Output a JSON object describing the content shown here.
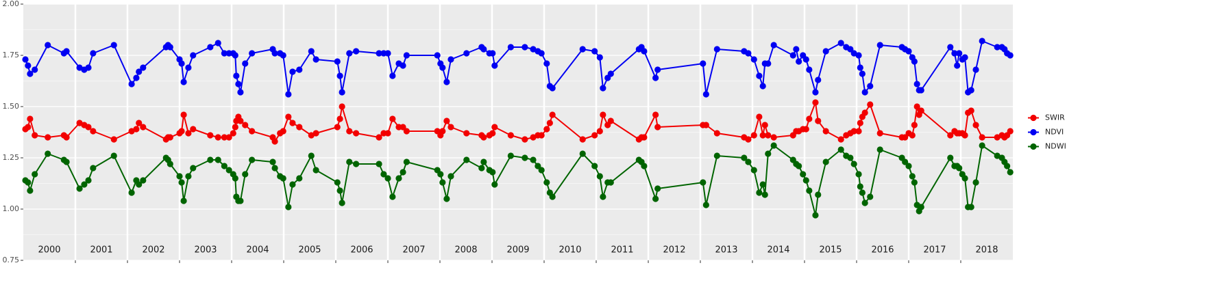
{
  "chart_data": {
    "type": "line",
    "xlim": [
      2000,
      2019
    ],
    "xticks": [
      2001,
      2002,
      2003,
      2004,
      2005,
      2006,
      2007,
      2008,
      2009,
      2010,
      2011,
      2012,
      2013,
      2014,
      2015,
      2016,
      2017,
      2018
    ],
    "year_labels": [
      "2000",
      "2001",
      "2002",
      "2003",
      "2004",
      "2005",
      "2006",
      "2007",
      "2008",
      "2009",
      "2010",
      "2011",
      "2012",
      "2013",
      "2014",
      "2015",
      "2016",
      "2017",
      "2018"
    ],
    "ylim": [
      0.75,
      2.0
    ],
    "yticks": [
      0.75,
      {
        "value": 1.0,
        "label": "1.00"
      },
      1.25,
      {
        "value": 1.5,
        "label": "1.50"
      },
      1.75,
      {
        "value": 2.0,
        "label": "2.00"
      }
    ],
    "grid": true,
    "legend": "right",
    "x": [
      2000.04,
      2000.09,
      2000.13,
      2000.22,
      2000.47,
      2000.78,
      2000.83,
      2001.08,
      2001.17,
      2001.25,
      2001.34,
      2001.74,
      2002.08,
      2002.17,
      2002.22,
      2002.3,
      2002.74,
      2002.78,
      2002.82,
      2003.0,
      2003.04,
      2003.08,
      2003.17,
      2003.26,
      2003.59,
      2003.74,
      2003.86,
      2003.95,
      2004.03,
      2004.07,
      2004.09,
      2004.13,
      2004.17,
      2004.26,
      2004.39,
      2004.79,
      2004.83,
      2004.93,
      2004.99,
      2005.09,
      2005.17,
      2005.3,
      2005.53,
      2005.62,
      2006.03,
      2006.08,
      2006.12,
      2006.26,
      2006.39,
      2006.83,
      2006.92,
      2007.0,
      2007.09,
      2007.21,
      2007.29,
      2007.36,
      2007.95,
      2008.01,
      2008.05,
      2008.13,
      2008.21,
      2008.51,
      2008.8,
      2008.84,
      2008.95,
      2009.01,
      2009.05,
      2009.36,
      2009.63,
      2009.79,
      2009.88,
      2009.95,
      2010.05,
      2010.11,
      2010.16,
      2010.74,
      2010.97,
      2011.07,
      2011.13,
      2011.22,
      2011.28,
      2011.82,
      2011.87,
      2011.92,
      2012.14,
      2012.18,
      2013.05,
      2013.11,
      2013.32,
      2013.84,
      2013.92,
      2014.03,
      2014.13,
      2014.2,
      2014.24,
      2014.3,
      2014.41,
      2014.78,
      2014.84,
      2014.89,
      2014.97,
      2015.03,
      2015.09,
      2015.21,
      2015.26,
      2015.41,
      2015.7,
      2015.8,
      2015.88,
      2015.95,
      2016.04,
      2016.07,
      2016.11,
      2016.16,
      2016.26,
      2016.45,
      2016.87,
      2016.93,
      2017.0,
      2017.07,
      2017.11,
      2017.16,
      2017.2,
      2017.24,
      2017.8,
      2017.88,
      2017.93,
      2017.97,
      2018.03,
      2018.08,
      2018.14,
      2018.2,
      2018.29,
      2018.41,
      2018.7,
      2018.79,
      2018.84,
      2018.89,
      2018.95
    ],
    "series": [
      {
        "name": "SWIR",
        "color": "#f20000",
        "values": [
          1.39,
          1.4,
          1.44,
          1.36,
          1.35,
          1.36,
          1.35,
          1.42,
          1.41,
          1.4,
          1.38,
          1.34,
          1.38,
          1.39,
          1.42,
          1.4,
          1.34,
          1.35,
          1.35,
          1.37,
          1.38,
          1.46,
          1.37,
          1.39,
          1.36,
          1.35,
          1.35,
          1.35,
          1.37,
          1.4,
          1.43,
          1.45,
          1.43,
          1.41,
          1.38,
          1.35,
          1.33,
          1.37,
          1.38,
          1.45,
          1.42,
          1.4,
          1.36,
          1.37,
          1.4,
          1.44,
          1.5,
          1.38,
          1.37,
          1.35,
          1.37,
          1.37,
          1.44,
          1.4,
          1.4,
          1.38,
          1.38,
          1.36,
          1.38,
          1.43,
          1.4,
          1.37,
          1.36,
          1.35,
          1.36,
          1.37,
          1.4,
          1.36,
          1.34,
          1.35,
          1.36,
          1.36,
          1.39,
          1.42,
          1.46,
          1.34,
          1.36,
          1.38,
          1.46,
          1.41,
          1.43,
          1.34,
          1.35,
          1.35,
          1.46,
          1.4,
          1.41,
          1.41,
          1.37,
          1.35,
          1.34,
          1.36,
          1.45,
          1.36,
          1.41,
          1.36,
          1.35,
          1.36,
          1.38,
          1.38,
          1.39,
          1.39,
          1.44,
          1.52,
          1.43,
          1.38,
          1.34,
          1.36,
          1.37,
          1.38,
          1.38,
          1.42,
          1.45,
          1.47,
          1.51,
          1.37,
          1.35,
          1.35,
          1.37,
          1.36,
          1.41,
          1.5,
          1.46,
          1.48,
          1.36,
          1.38,
          1.37,
          1.37,
          1.37,
          1.36,
          1.47,
          1.48,
          1.41,
          1.35,
          1.35,
          1.36,
          1.35,
          1.36,
          1.38
        ]
      },
      {
        "name": "NDVI",
        "color": "#0000f2",
        "values": [
          1.73,
          1.7,
          1.66,
          1.68,
          1.8,
          1.76,
          1.77,
          1.69,
          1.68,
          1.69,
          1.76,
          1.8,
          1.61,
          1.64,
          1.67,
          1.69,
          1.79,
          1.8,
          1.79,
          1.73,
          1.71,
          1.62,
          1.69,
          1.75,
          1.79,
          1.81,
          1.76,
          1.76,
          1.76,
          1.75,
          1.65,
          1.61,
          1.57,
          1.71,
          1.76,
          1.78,
          1.76,
          1.76,
          1.75,
          1.56,
          1.67,
          1.68,
          1.77,
          1.73,
          1.72,
          1.65,
          1.57,
          1.76,
          1.77,
          1.76,
          1.76,
          1.76,
          1.65,
          1.71,
          1.7,
          1.75,
          1.75,
          1.71,
          1.69,
          1.62,
          1.73,
          1.76,
          1.79,
          1.78,
          1.76,
          1.76,
          1.7,
          1.79,
          1.79,
          1.78,
          1.77,
          1.76,
          1.71,
          1.6,
          1.59,
          1.78,
          1.77,
          1.74,
          1.59,
          1.64,
          1.66,
          1.78,
          1.79,
          1.77,
          1.64,
          1.68,
          1.71,
          1.56,
          1.78,
          1.77,
          1.76,
          1.73,
          1.65,
          1.6,
          1.71,
          1.71,
          1.8,
          1.75,
          1.78,
          1.72,
          1.75,
          1.73,
          1.68,
          1.57,
          1.63,
          1.77,
          1.81,
          1.79,
          1.78,
          1.76,
          1.75,
          1.69,
          1.66,
          1.57,
          1.6,
          1.8,
          1.79,
          1.78,
          1.77,
          1.74,
          1.72,
          1.61,
          1.58,
          1.58,
          1.79,
          1.76,
          1.7,
          1.76,
          1.73,
          1.74,
          1.57,
          1.58,
          1.68,
          1.82,
          1.79,
          1.79,
          1.78,
          1.76,
          1.75
        ]
      },
      {
        "name": "NDWI",
        "color": "#006400",
        "values": [
          1.14,
          1.13,
          1.09,
          1.17,
          1.27,
          1.24,
          1.23,
          1.1,
          1.12,
          1.14,
          1.2,
          1.26,
          1.08,
          1.14,
          1.12,
          1.14,
          1.25,
          1.24,
          1.22,
          1.16,
          1.13,
          1.04,
          1.16,
          1.2,
          1.24,
          1.24,
          1.21,
          1.19,
          1.17,
          1.15,
          1.06,
          1.04,
          1.04,
          1.17,
          1.24,
          1.23,
          1.2,
          1.16,
          1.15,
          1.01,
          1.12,
          1.15,
          1.26,
          1.19,
          1.13,
          1.09,
          1.03,
          1.23,
          1.22,
          1.22,
          1.17,
          1.15,
          1.06,
          1.15,
          1.18,
          1.23,
          1.19,
          1.17,
          1.13,
          1.05,
          1.16,
          1.24,
          1.2,
          1.23,
          1.19,
          1.18,
          1.12,
          1.26,
          1.25,
          1.24,
          1.21,
          1.19,
          1.13,
          1.08,
          1.06,
          1.27,
          1.21,
          1.16,
          1.06,
          1.13,
          1.13,
          1.24,
          1.23,
          1.21,
          1.05,
          1.1,
          1.13,
          1.02,
          1.26,
          1.25,
          1.23,
          1.19,
          1.08,
          1.12,
          1.07,
          1.27,
          1.31,
          1.24,
          1.22,
          1.21,
          1.17,
          1.14,
          1.09,
          0.97,
          1.07,
          1.23,
          1.29,
          1.26,
          1.25,
          1.22,
          1.17,
          1.11,
          1.08,
          1.03,
          1.06,
          1.29,
          1.25,
          1.23,
          1.21,
          1.16,
          1.13,
          1.02,
          0.99,
          1.01,
          1.25,
          1.21,
          1.21,
          1.2,
          1.17,
          1.15,
          1.01,
          1.01,
          1.13,
          1.31,
          1.26,
          1.25,
          1.23,
          1.21,
          1.18
        ]
      }
    ]
  }
}
